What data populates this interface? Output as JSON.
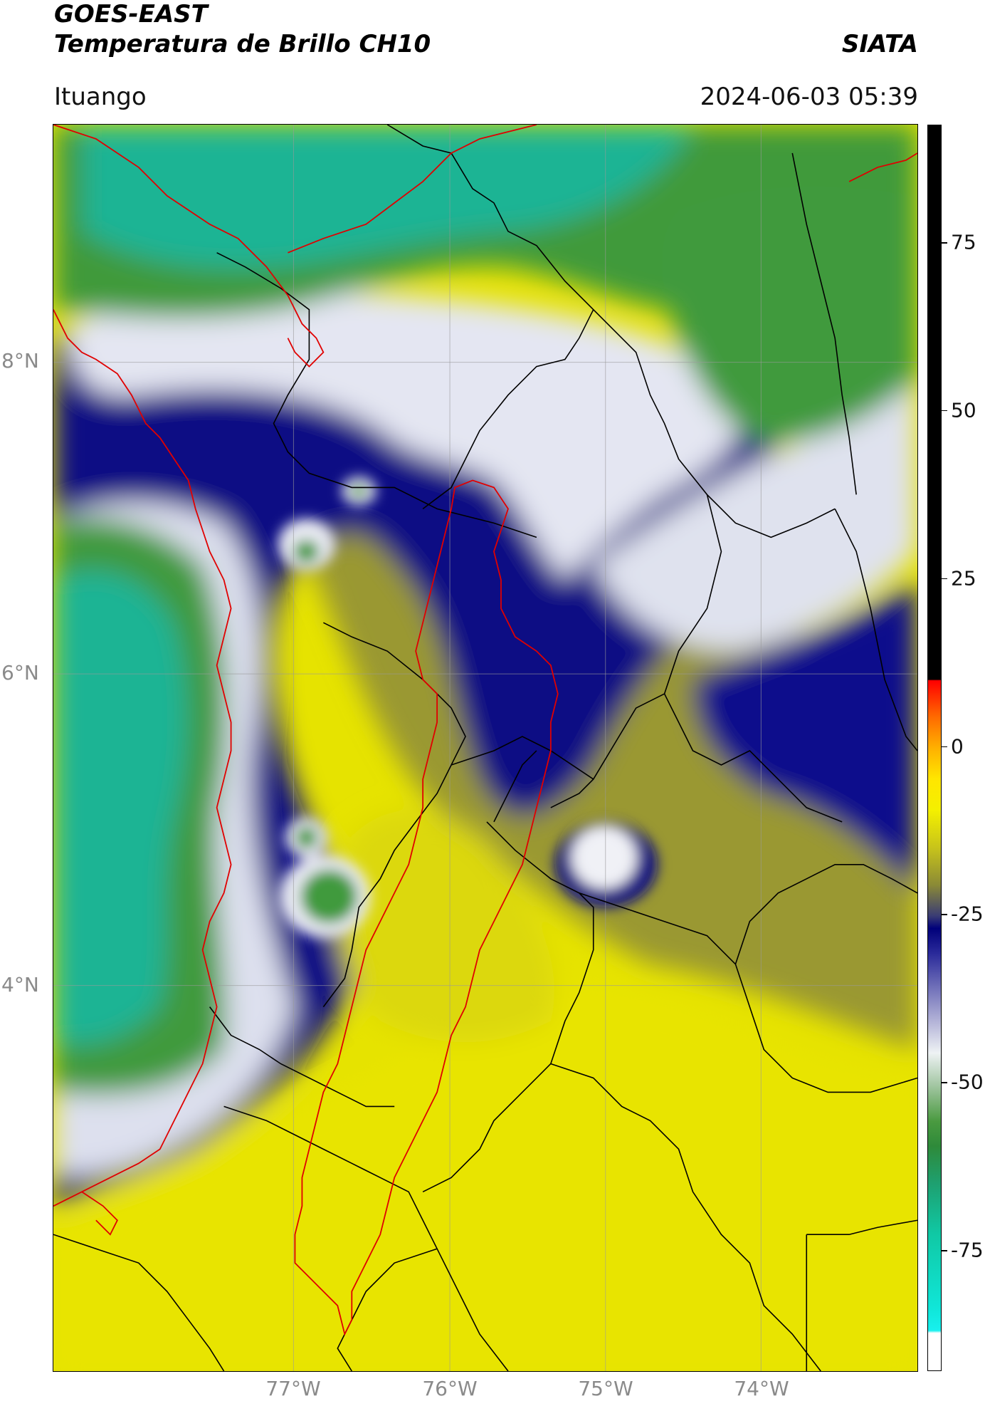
{
  "header": {
    "title": "GOES-EAST",
    "subtitle": "Temperatura de Brillo CH10",
    "org": "SIATA",
    "region": "Ituango",
    "timestamp": "2024-06-03 05:39"
  },
  "map": {
    "lat_labels": [
      "8°N",
      "6°N",
      "4°N"
    ],
    "lon_labels": [
      "77°W",
      "76°W",
      "75°W",
      "74°W"
    ],
    "gridlines": true,
    "colors": {
      "warm_yellow": "#e6e300",
      "olive": "#8b8a36",
      "deep_blue": "#00007a",
      "mid_blue": "#4a4ab0",
      "pale": "#eef2f4",
      "green": "#3a9a3c",
      "teal": "#1ab494",
      "boundary_black": "#000000",
      "boundary_red": "#e00000"
    }
  },
  "colorbar": {
    "ticks": [
      {
        "value": 75,
        "label": "75"
      },
      {
        "value": 50,
        "label": "50"
      },
      {
        "value": 25,
        "label": "25"
      },
      {
        "value": 0,
        "label": "0"
      },
      {
        "value": -25,
        "label": "-25"
      },
      {
        "value": -50,
        "label": "-50"
      },
      {
        "value": -75,
        "label": "-75"
      }
    ]
  }
}
